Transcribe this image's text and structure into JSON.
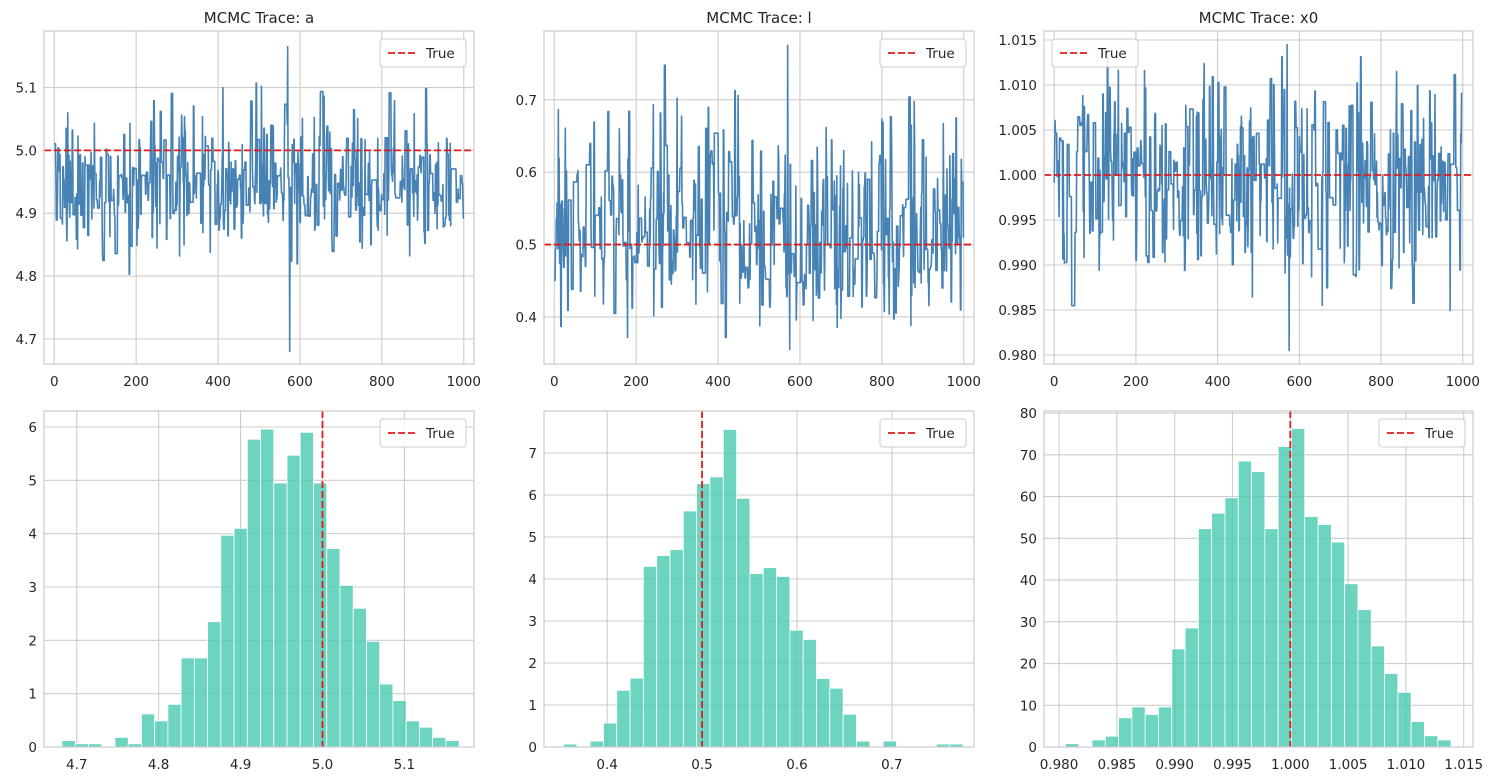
{
  "colors": {
    "trace": "#4682b4",
    "hist": "#48c9b0",
    "true_line": "#e31a1c",
    "grid": "#cccccc",
    "axes": "#cccccc"
  },
  "legend": {
    "label": "True"
  },
  "chart_data": [
    {
      "type": "line",
      "title": "MCMC Trace: a",
      "xlim": [
        -25,
        1025
      ],
      "ylim": [
        4.66,
        5.19
      ],
      "xticks": [
        0,
        200,
        400,
        600,
        800,
        1000
      ],
      "xtick_labels": [
        "0",
        "200",
        "400",
        "600",
        "800",
        "1000"
      ],
      "yticks": [
        4.7,
        4.8,
        4.9,
        5.0,
        5.1
      ],
      "ytick_labels": [
        "4.7",
        "4.8",
        "4.9",
        "5.0",
        "5.1"
      ],
      "true_value": 5.0,
      "true_orient": "h",
      "legend_pos": "top-right",
      "series": {
        "n": 1000,
        "mean": 4.95,
        "sd": 0.05,
        "amp_shape": 0.6,
        "min": 4.68,
        "max": 5.165,
        "seed": 11
      }
    },
    {
      "type": "line",
      "title": "MCMC Trace: l",
      "xlim": [
        -25,
        1025
      ],
      "ylim": [
        0.335,
        0.795
      ],
      "xticks": [
        0,
        200,
        400,
        600,
        800,
        1000
      ],
      "xtick_labels": [
        "0",
        "200",
        "400",
        "600",
        "800",
        "1000"
      ],
      "yticks": [
        0.4,
        0.5,
        0.6,
        0.7
      ],
      "ytick_labels": [
        "0.4",
        "0.5",
        "0.6",
        "0.7"
      ],
      "true_value": 0.5,
      "true_orient": "h",
      "legend_pos": "top-right",
      "series": {
        "n": 1000,
        "mean": 0.52,
        "sd": 0.06,
        "amp_shape": 0.9,
        "min": 0.355,
        "max": 0.775,
        "seed": 23
      }
    },
    {
      "type": "line",
      "title": "MCMC Trace: x0",
      "xlim": [
        -25,
        1025
      ],
      "ylim": [
        0.979,
        1.016
      ],
      "xticks": [
        0,
        200,
        400,
        600,
        800,
        1000
      ],
      "xtick_labels": [
        "0",
        "200",
        "400",
        "600",
        "800",
        "1000"
      ],
      "yticks": [
        0.98,
        0.985,
        0.99,
        0.995,
        1.0,
        1.005,
        1.01,
        1.015
      ],
      "ytick_labels": [
        "0.980",
        "0.985",
        "0.990",
        "0.995",
        "1.000",
        "1.005",
        "1.010",
        "1.015"
      ],
      "true_value": 1.0,
      "true_orient": "h",
      "legend_pos": "top-left",
      "series": {
        "n": 1000,
        "mean": 0.9995,
        "sd": 0.0055,
        "amp_shape": 0.0,
        "min": 0.9805,
        "max": 1.0145,
        "seed": 37
      }
    },
    {
      "type": "bar",
      "xlim": [
        4.66,
        5.185
      ],
      "ylim": [
        0,
        6.3
      ],
      "xticks": [
        4.7,
        4.8,
        4.9,
        5.0,
        5.1
      ],
      "xtick_labels": [
        "4.7",
        "4.8",
        "4.9",
        "5.0",
        "5.1"
      ],
      "yticks": [
        0,
        1,
        2,
        3,
        4,
        5,
        6
      ],
      "ytick_labels": [
        "0",
        "1",
        "2",
        "3",
        "4",
        "5",
        "6"
      ],
      "true_value": 5.0,
      "true_orient": "v",
      "legend_pos": "top-right",
      "bin_start": 4.682,
      "bin_width": 0.01616,
      "values": [
        0.12,
        0.06,
        0.06,
        0.0,
        0.18,
        0.06,
        0.62,
        0.49,
        0.8,
        1.67,
        1.67,
        2.35,
        3.97,
        4.1,
        5.77,
        5.96,
        4.95,
        5.47,
        5.9,
        4.95,
        3.72,
        3.03,
        2.6,
        1.98,
        1.18,
        0.87,
        0.49,
        0.37,
        0.18,
        0.12
      ]
    },
    {
      "type": "bar",
      "xlim": [
        0.3335,
        0.7865
      ],
      "ylim": [
        0,
        8.0
      ],
      "xticks": [
        0.4,
        0.5,
        0.6,
        0.7
      ],
      "xtick_labels": [
        "0.4",
        "0.5",
        "0.6",
        "0.7"
      ],
      "yticks": [
        0,
        1,
        2,
        3,
        4,
        5,
        6,
        7
      ],
      "ytick_labels": [
        "0",
        "1",
        "2",
        "3",
        "4",
        "5",
        "6",
        "7"
      ],
      "true_value": 0.5,
      "true_orient": "v",
      "legend_pos": "top-right",
      "bin_start": 0.354,
      "bin_width": 0.01403,
      "values": [
        0.07,
        0.0,
        0.14,
        0.57,
        1.35,
        1.64,
        4.3,
        4.56,
        4.7,
        5.62,
        6.27,
        6.43,
        7.56,
        5.92,
        4.13,
        4.27,
        4.06,
        2.78,
        2.56,
        1.63,
        1.4,
        0.78,
        0.14,
        0.0,
        0.14,
        0.0,
        0.0,
        0.0,
        0.07,
        0.07
      ]
    },
    {
      "type": "bar",
      "xlim": [
        0.9787,
        1.0158
      ],
      "ylim": [
        0,
        80.5
      ],
      "xticks": [
        0.98,
        0.985,
        0.99,
        0.995,
        1.0,
        1.005,
        1.01,
        1.015
      ],
      "xtick_labels": [
        "0.980",
        "0.985",
        "0.990",
        "0.995",
        "1.000",
        "1.005",
        "1.010",
        "1.015"
      ],
      "yticks": [
        0,
        10,
        20,
        30,
        40,
        50,
        60,
        70,
        80
      ],
      "ytick_labels": [
        "0",
        "10",
        "20",
        "30",
        "40",
        "50",
        "60",
        "70",
        "80"
      ],
      "true_value": 1.0,
      "true_orient": "v",
      "legend_pos": "top-right",
      "bin_start": 0.98055,
      "bin_width": 0.00115,
      "values": [
        0.8,
        0.0,
        1.7,
        2.6,
        7.0,
        9.6,
        7.8,
        9.6,
        23.5,
        28.5,
        52.3,
        56.0,
        59.7,
        68.5,
        66.0,
        52.3,
        72.0,
        76.3,
        55.2,
        53.3,
        49.1,
        39.1,
        32.9,
        24.2,
        17.6,
        13.1,
        6.1,
        2.7,
        1.7,
        0.0
      ]
    }
  ]
}
